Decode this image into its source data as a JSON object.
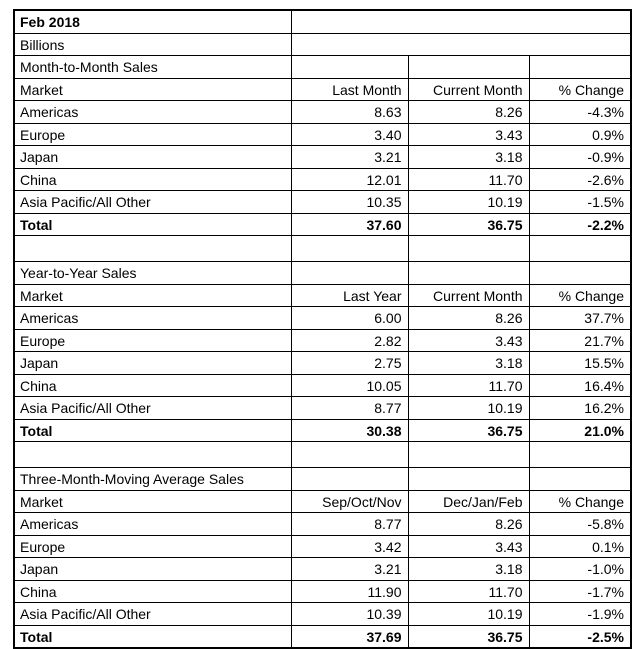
{
  "report": {
    "title": "Feb 2018",
    "units": "Billions",
    "colors": {
      "border": "#000000",
      "text": "#000000",
      "background": "#ffffff"
    },
    "sections": [
      {
        "name": "Month-to-Month Sales",
        "columns": [
          "Market",
          "Last Month",
          "Current Month",
          "% Change"
        ],
        "rows": [
          {
            "market": "Americas",
            "values": [
              "8.63",
              "8.26"
            ],
            "pct_change": "-4.3%"
          },
          {
            "market": "Europe",
            "values": [
              "3.40",
              "3.43"
            ],
            "pct_change": "0.9%"
          },
          {
            "market": "Japan",
            "values": [
              "3.21",
              "3.18"
            ],
            "pct_change": "-0.9%"
          },
          {
            "market": "China",
            "values": [
              "12.01",
              "11.70"
            ],
            "pct_change": "-2.6%"
          },
          {
            "market": "Asia Pacific/All Other",
            "values": [
              "10.35",
              "10.19"
            ],
            "pct_change": "-1.5%"
          }
        ],
        "total": {
          "market": "Total",
          "values": [
            "37.60",
            "36.75"
          ],
          "pct_change": "-2.2%"
        }
      },
      {
        "name": "Year-to-Year Sales",
        "columns": [
          "Market",
          "Last Year",
          "Current Month",
          "% Change"
        ],
        "rows": [
          {
            "market": "Americas",
            "values": [
              "6.00",
              "8.26"
            ],
            "pct_change": "37.7%"
          },
          {
            "market": "Europe",
            "values": [
              "2.82",
              "3.43"
            ],
            "pct_change": "21.7%"
          },
          {
            "market": "Japan",
            "values": [
              "2.75",
              "3.18"
            ],
            "pct_change": "15.5%"
          },
          {
            "market": "China",
            "values": [
              "10.05",
              "11.70"
            ],
            "pct_change": "16.4%"
          },
          {
            "market": "Asia Pacific/All Other",
            "values": [
              "8.77",
              "10.19"
            ],
            "pct_change": "16.2%"
          }
        ],
        "total": {
          "market": "Total",
          "values": [
            "30.38",
            "36.75"
          ],
          "pct_change": "21.0%"
        }
      },
      {
        "name": "Three-Month-Moving Average Sales",
        "columns": [
          "Market",
          "Sep/Oct/Nov",
          "Dec/Jan/Feb",
          "% Change"
        ],
        "rows": [
          {
            "market": "Americas",
            "values": [
              "8.77",
              "8.26"
            ],
            "pct_change": "-5.8%"
          },
          {
            "market": "Europe",
            "values": [
              "3.42",
              "3.43"
            ],
            "pct_change": "0.1%"
          },
          {
            "market": "Japan",
            "values": [
              "3.21",
              "3.18"
            ],
            "pct_change": "-1.0%"
          },
          {
            "market": "China",
            "values": [
              "11.90",
              "11.70"
            ],
            "pct_change": "-1.7%"
          },
          {
            "market": "Asia Pacific/All Other",
            "values": [
              "10.39",
              "10.19"
            ],
            "pct_change": "-1.9%"
          }
        ],
        "total": {
          "market": "Total",
          "values": [
            "37.69",
            "36.75"
          ],
          "pct_change": "-2.5%"
        }
      }
    ]
  }
}
